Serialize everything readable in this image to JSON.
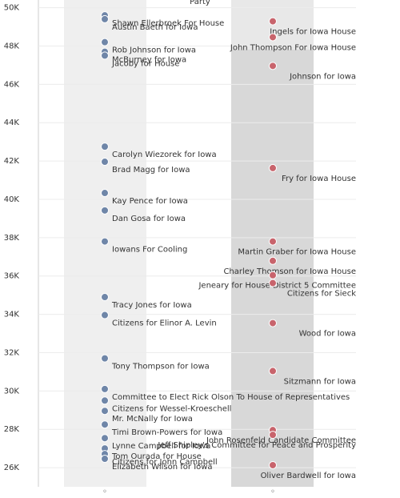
{
  "chart_data": {
    "type": "strip",
    "title": "Party",
    "ylim": [
      25000,
      50400
    ],
    "yticks": [
      {
        "value": 26000,
        "label": "26K"
      },
      {
        "value": 28000,
        "label": "28K"
      },
      {
        "value": 30000,
        "label": "30K"
      },
      {
        "value": 32000,
        "label": "32K"
      },
      {
        "value": 34000,
        "label": "34K"
      },
      {
        "value": 36000,
        "label": "36K"
      },
      {
        "value": 38000,
        "label": "38K"
      },
      {
        "value": 40000,
        "label": "40K"
      },
      {
        "value": 42000,
        "label": "42K"
      },
      {
        "value": 44000,
        "label": "44K"
      },
      {
        "value": 46000,
        "label": "46K"
      },
      {
        "value": 48000,
        "label": "48K"
      },
      {
        "value": 50000,
        "label": "50K"
      }
    ],
    "grid": true,
    "series": [
      {
        "color": "#6f86a8",
        "labels": [
          "Shawn Ellerbroek For House",
          "Austin Baeth for Iowa",
          "Rob Johnson for Iowa",
          "McBurney for Iowa",
          "Jacoby for House",
          "Carolyn Wiezorek for Iowa",
          "Brad Magg for Iowa",
          "Kay Pence for Iowa",
          "Dan Gosa for Iowa",
          "Iowans For Cooling",
          "Tracy Jones for Iowa",
          "Citizens for Elinor A. Levin",
          "Tony Thompson for Iowa",
          "Committee to Elect Rick Olson To House of Representatives",
          "Citizens for Wessel-Kroeschell",
          "Mr. McNally for Iowa",
          "Timi Brown-Powers for Iowa",
          "Lynne Campbell for Iowa",
          "Tom Ourada for House",
          "Citizens for John Campbell",
          "Elizabeth Wilson for Iowa"
        ],
        "values": [
          49600,
          49400,
          48200,
          47700,
          47500,
          42750,
          41960,
          40330,
          39420,
          37800,
          34900,
          33960,
          31700,
          30100,
          29500,
          28960,
          28250,
          27540,
          27000,
          26710,
          26460
        ]
      },
      {
        "color": "#c8646c",
        "labels": [
          "Ingels for Iowa House",
          "John Thompson For Iowa House",
          "Johnson for Iowa",
          "Fry for Iowa House",
          "Martin Graber for Iowa House",
          "Charley Thomson for Iowa House",
          "Jeneary for House District 5 Committee",
          "Citizens for Sieck",
          "Wood for Iowa",
          "Sitzmann for Iowa",
          "John Rosenfeld Candidate Committee",
          "Jeff Shipley's Committee for Peace and Prosperity",
          "Oliver Bardwell for Iowa"
        ],
        "values": [
          49290,
          48460,
          46960,
          41630,
          37800,
          36790,
          36040,
          35630,
          33540,
          31040,
          27960,
          27710,
          26130
        ]
      }
    ]
  }
}
